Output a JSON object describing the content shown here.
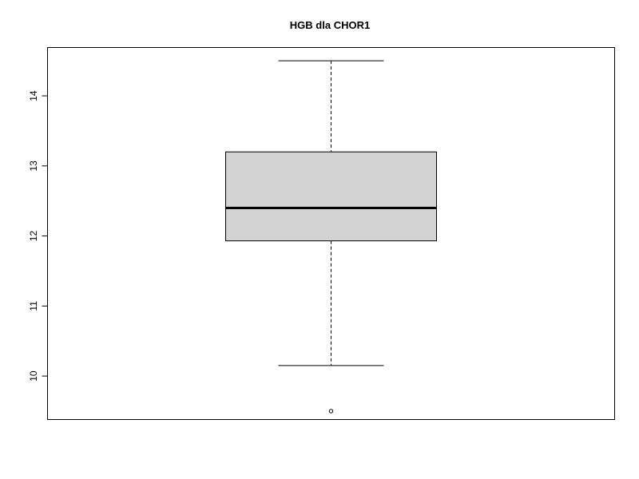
{
  "chart_data": {
    "type": "boxplot",
    "title": "HGB dla CHOR1",
    "xlabel": "",
    "ylabel": "",
    "ylim": [
      9.38,
      14.69
    ],
    "yticks": [
      10,
      11,
      12,
      13,
      14
    ],
    "grid": false,
    "legend": "none",
    "box": {
      "whisker_low": 10.15,
      "q1": 11.93,
      "median": 12.4,
      "q3": 13.2,
      "whisker_high": 14.5,
      "outliers": [
        9.5
      ]
    },
    "colors": {
      "box_fill": "#d3d3d3",
      "stroke": "#000000",
      "background": "#ffffff"
    }
  }
}
